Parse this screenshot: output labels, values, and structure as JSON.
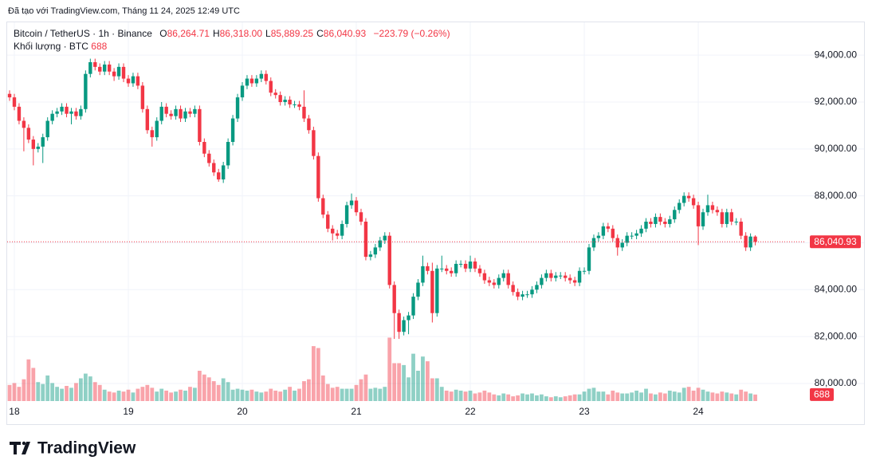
{
  "attribution": "Đã tạo với TradingView.com, Tháng 11 24, 2025 12:49 UTC",
  "logo": "TradingView",
  "chart_data": {
    "type": "candlestick",
    "legend": {
      "symbol": "Bitcoin / TetherUS · 1h · Binance",
      "items": [
        {
          "key": "O",
          "value": "86,264.71"
        },
        {
          "key": "H",
          "value": "86,318.00"
        },
        {
          "key": "L",
          "value": "85,889.25"
        },
        {
          "key": "C",
          "value": "86,040.93"
        }
      ],
      "change": "−223.79 (−0.26%)",
      "volume_title": "Khối lượng · BTC"
    },
    "up_color": "#089981",
    "down_color": "#f23645",
    "grid": true,
    "xlim": [
      -0.34,
      165.8
    ],
    "xticks": [
      {
        "value": 1,
        "label": "18"
      },
      {
        "value": 25,
        "label": "19"
      },
      {
        "value": 49,
        "label": "20"
      },
      {
        "value": 73,
        "label": "21"
      },
      {
        "value": 97,
        "label": "22"
      },
      {
        "value": 121,
        "label": "23"
      },
      {
        "value": 145,
        "label": "24"
      }
    ],
    "ylim": [
      79250,
      95400
    ],
    "yticks": [
      {
        "value": 80000,
        "label": "80,000.00"
      },
      {
        "value": 82000,
        "label": "82,000.00"
      },
      {
        "value": 84000,
        "label": "84,000.00"
      },
      {
        "value": 86000,
        "label": "86,000.00"
      },
      {
        "value": 88000,
        "label": "88,000.00"
      },
      {
        "value": 90000,
        "label": "90,000.00"
      },
      {
        "value": 92000,
        "label": "92,000.00"
      },
      {
        "value": 94000,
        "label": "94,000.00"
      }
    ],
    "y2lim": [
      0,
      40000
    ],
    "open": [
      92350,
      92200,
      91800,
      91200,
      90900,
      90400,
      90000,
      90100,
      90500,
      91200,
      91500,
      91600,
      91800,
      91500,
      91600,
      91400,
      91700,
      93200,
      93700,
      93500,
      93300,
      93600,
      93300,
      93100,
      93500,
      93000,
      92800,
      93100,
      92700,
      91700,
      90800,
      90500,
      91200,
      91800,
      91500,
      91400,
      91700,
      91300,
      91600,
      91500,
      91700,
      90300,
      89800,
      89400,
      89000,
      88700,
      89300,
      90300,
      91300,
      92200,
      92700,
      93000,
      92800,
      93000,
      93200,
      92900,
      92400,
      92300,
      92000,
      92100,
      91900,
      91900,
      91800,
      91300,
      90800,
      89700,
      87900,
      87200,
      86600,
      86400,
      86300,
      86800,
      87600,
      87800,
      87300,
      86900,
      85400,
      85500,
      85800,
      86100,
      86300,
      84200,
      83000,
      82200,
      82700,
      82900,
      83700,
      84300,
      85000,
      84800,
      83000,
      84900,
      84900,
      84800,
      84700,
      85100,
      85100,
      84900,
      85200,
      84900,
      84700,
      84400,
      84300,
      84200,
      84500,
      84700,
      84200,
      83900,
      83700,
      83800,
      83800,
      84000,
      84200,
      84500,
      84700,
      84500,
      84600,
      84600,
      84500,
      84400,
      84300,
      84800,
      84800,
      85800,
      86200,
      86300,
      86700,
      86600,
      86200,
      85800,
      86000,
      86300,
      86300,
      86400,
      86600,
      86900,
      86800,
      87100,
      86900,
      86800,
      87000,
      87400,
      87700,
      88000,
      87900,
      87600,
      86700,
      87300,
      87600,
      87400,
      87300,
      86800,
      87300,
      86900,
      86900,
      86300,
      85800,
      86264.71
    ],
    "high": [
      92500,
      92350,
      91950,
      91350,
      91050,
      90550,
      90250,
      90650,
      91350,
      91650,
      91750,
      91950,
      91950,
      91750,
      91750,
      91850,
      93350,
      93850,
      93850,
      93650,
      93750,
      93750,
      93450,
      93650,
      93650,
      93150,
      93250,
      93250,
      92850,
      91850,
      90950,
      91350,
      92000,
      91950,
      91650,
      91850,
      91850,
      91750,
      91750,
      91850,
      91850,
      90450,
      89950,
      89550,
      89150,
      89450,
      90450,
      91450,
      92350,
      92850,
      93150,
      93150,
      93150,
      93350,
      93350,
      93050,
      92550,
      92450,
      92250,
      92250,
      92050,
      92050,
      92500,
      91450,
      90950,
      89850,
      88050,
      87350,
      86750,
      86550,
      86950,
      87750,
      88100,
      87950,
      87450,
      87050,
      85650,
      85950,
      86250,
      86450,
      86450,
      84350,
      83150,
      82850,
      83050,
      83850,
      84450,
      85450,
      85150,
      85150,
      85050,
      85450,
      85050,
      84950,
      85250,
      85250,
      85250,
      85450,
      85350,
      85050,
      84850,
      84550,
      84450,
      84650,
      84850,
      84850,
      84350,
      84050,
      83950,
      83950,
      84150,
      84350,
      84650,
      84850,
      84850,
      84750,
      84750,
      84750,
      84650,
      84550,
      84950,
      84950,
      85950,
      86350,
      86450,
      86850,
      86850,
      86750,
      86350,
      86150,
      86450,
      86450,
      86550,
      86750,
      87050,
      87050,
      87250,
      87250,
      87050,
      87150,
      87550,
      87850,
      88150,
      88150,
      88050,
      87750,
      87450,
      88050,
      87750,
      87550,
      87450,
      87450,
      87450,
      87050,
      87050,
      86450,
      86400,
      86318
    ],
    "low": [
      92050,
      91650,
      91050,
      89900,
      90250,
      89300,
      89850,
      89400,
      90350,
      91050,
      91350,
      91450,
      91350,
      91050,
      91250,
      91250,
      91550,
      93050,
      93350,
      93150,
      93150,
      93150,
      92900,
      92950,
      92850,
      92650,
      92650,
      92550,
      91550,
      90650,
      90100,
      90350,
      91050,
      91350,
      91250,
      91250,
      91150,
      91150,
      91350,
      91350,
      90150,
      89650,
      89250,
      88850,
      88600,
      88550,
      89150,
      90150,
      91150,
      92050,
      92550,
      92650,
      92650,
      92850,
      92750,
      92250,
      92150,
      91850,
      91850,
      91750,
      91750,
      91650,
      91150,
      90650,
      89550,
      87750,
      87050,
      86450,
      86100,
      86150,
      86150,
      86650,
      87450,
      87150,
      86750,
      85250,
      85250,
      85350,
      85650,
      85950,
      84050,
      81900,
      81900,
      82050,
      82100,
      82750,
      83550,
      84150,
      84650,
      82600,
      82850,
      84750,
      84650,
      84550,
      84550,
      84950,
      84750,
      84750,
      84750,
      84550,
      84250,
      84150,
      84050,
      84050,
      84350,
      84050,
      83750,
      83550,
      83550,
      83650,
      83650,
      83850,
      84050,
      84350,
      84350,
      84350,
      84450,
      84350,
      84250,
      84150,
      84150,
      84650,
      84650,
      85650,
      86050,
      86150,
      86450,
      86050,
      85450,
      85650,
      85850,
      86150,
      86150,
      86250,
      86450,
      86650,
      86650,
      86750,
      86650,
      86650,
      86850,
      87250,
      87550,
      87750,
      87450,
      85900,
      86550,
      87150,
      87250,
      87150,
      86650,
      86650,
      86750,
      86750,
      86150,
      85650,
      85650,
      85889.25
    ],
    "close": [
      92200,
      91800,
      91200,
      90900,
      90400,
      90000,
      90100,
      90500,
      91200,
      91500,
      91600,
      91800,
      91500,
      91600,
      91400,
      91700,
      93200,
      93700,
      93500,
      93300,
      93600,
      93300,
      93100,
      93500,
      93000,
      92800,
      93100,
      92700,
      91700,
      90800,
      90500,
      91200,
      91800,
      91500,
      91400,
      91700,
      91300,
      91600,
      91500,
      91700,
      90300,
      89800,
      89400,
      89000,
      88700,
      89300,
      90300,
      91300,
      92200,
      92700,
      93000,
      92800,
      93000,
      93200,
      92900,
      92400,
      92300,
      92000,
      92100,
      91900,
      91900,
      91800,
      91300,
      90800,
      89700,
      87900,
      87200,
      86600,
      86400,
      86300,
      86800,
      87600,
      87800,
      87300,
      86900,
      85400,
      85500,
      85800,
      86100,
      86300,
      84200,
      83000,
      82200,
      82700,
      82900,
      83700,
      84300,
      85000,
      84800,
      83000,
      84900,
      84900,
      84800,
      84700,
      85100,
      85100,
      84900,
      85200,
      84900,
      84700,
      84400,
      84300,
      84200,
      84500,
      84700,
      84200,
      83900,
      83700,
      83800,
      83800,
      84000,
      84200,
      84500,
      84700,
      84500,
      84600,
      84600,
      84500,
      84400,
      84300,
      84800,
      84800,
      85800,
      86200,
      86300,
      86700,
      86600,
      86200,
      85800,
      86000,
      86300,
      86300,
      86400,
      86600,
      86900,
      86800,
      87100,
      86900,
      86800,
      87000,
      87400,
      87700,
      88000,
      87900,
      87600,
      86700,
      87300,
      87600,
      87400,
      87300,
      86800,
      87300,
      86900,
      86900,
      86300,
      85800,
      86264.71,
      86040.93
    ],
    "volume": [
      1700,
      1900,
      1500,
      2300,
      4400,
      3500,
      2000,
      1800,
      2700,
      1900,
      1500,
      1300,
      1600,
      1400,
      1900,
      2400,
      2900,
      2600,
      2000,
      1700,
      1200,
      1000,
      900,
      1100,
      1000,
      1200,
      900,
      1300,
      1500,
      1700,
      1400,
      1000,
      1300,
      1100,
      900,
      1000,
      1200,
      1100,
      1500,
      1400,
      3200,
      2800,
      2500,
      2100,
      1700,
      2400,
      2000,
      1200,
      1300,
      1200,
      1100,
      1200,
      1000,
      900,
      1000,
      1300,
      1100,
      1000,
      1200,
      1500,
      1100,
      1300,
      2100,
      2300,
      5800,
      5600,
      2700,
      1800,
      1400,
      1500,
      1300,
      1300,
      1300,
      1700,
      2300,
      2800,
      1300,
      1400,
      1300,
      1500,
      6700,
      4000,
      4000,
      3800,
      2500,
      5000,
      3200,
      4700,
      4200,
      2400,
      2400,
      1500,
      1100,
      1000,
      1200,
      1100,
      1000,
      1100,
      800,
      900,
      1100,
      900,
      700,
      600,
      800,
      700,
      500,
      600,
      800,
      700,
      800,
      600,
      700,
      500,
      400,
      500,
      400,
      500,
      600,
      700,
      700,
      1000,
      1300,
      1400,
      1000,
      1000,
      700,
      1100,
      900,
      800,
      800,
      900,
      1100,
      900,
      1300,
      800,
      700,
      900,
      800,
      1100,
      1000,
      900,
      1400,
      1500,
      1100,
      1400,
      1200,
      1000,
      900,
      800,
      1000,
      900,
      800,
      700,
      1200,
      1000,
      800,
      688
    ]
  }
}
